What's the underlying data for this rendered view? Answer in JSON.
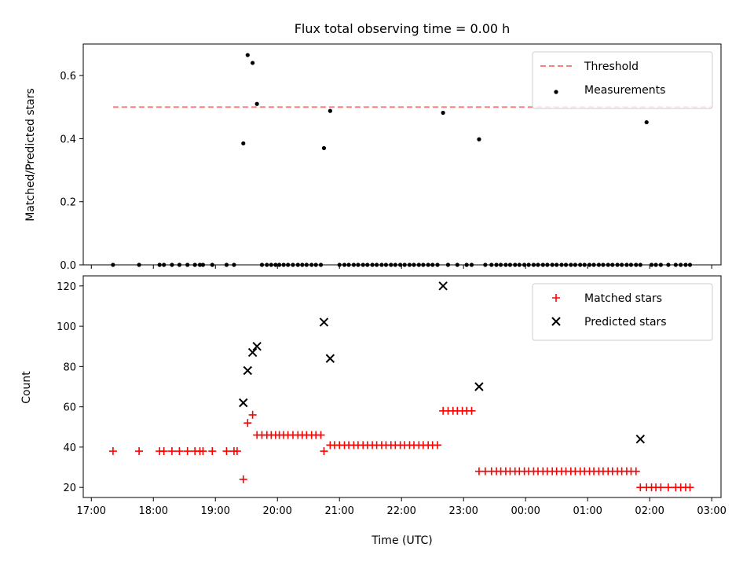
{
  "chart_data": {
    "title": "Flux total observing time = 0.00 h",
    "xlabel": "Time (UTC)",
    "x_tick_labels": [
      "17:00",
      "18:00",
      "19:00",
      "20:00",
      "21:00",
      "22:00",
      "23:00",
      "00:00",
      "01:00",
      "02:00",
      "03:00"
    ],
    "x_ticks_hours": [
      17,
      18,
      19,
      20,
      21,
      22,
      23,
      24,
      25,
      26,
      27
    ],
    "xlim": [
      16.87,
      27.15
    ],
    "panels": [
      {
        "type": "scatter",
        "ylabel": "Matched/Predicted stars",
        "ylim": [
          0,
          0.7
        ],
        "yticks": [
          0.0,
          0.2,
          0.4,
          0.6
        ],
        "ytick_labels": [
          "0.0",
          "0.2",
          "0.4",
          "0.6"
        ],
        "legend_position": "top-right",
        "threshold": {
          "name": "Threshold",
          "value": 0.5,
          "x_range": [
            17.35,
            27.0
          ],
          "color": "#ff7f7f"
        },
        "series": [
          {
            "name": "Measurements",
            "color": "#000000",
            "x": [
              17.35,
              17.77,
              18.1,
              18.17,
              18.3,
              18.42,
              18.55,
              18.67,
              18.75,
              18.8,
              18.95,
              19.18,
              19.3,
              19.45,
              19.52,
              19.6,
              19.67,
              19.75,
              19.83,
              19.9,
              19.97,
              20.03,
              20.1,
              20.17,
              20.25,
              20.33,
              20.4,
              20.47,
              20.55,
              20.62,
              20.7,
              20.75,
              20.85,
              21.0,
              21.08,
              21.15,
              21.23,
              21.3,
              21.38,
              21.45,
              21.53,
              21.6,
              21.68,
              21.75,
              21.83,
              21.9,
              21.98,
              22.05,
              22.13,
              22.2,
              22.28,
              22.35,
              22.43,
              22.5,
              22.58,
              22.67,
              22.75,
              22.9,
              23.05,
              23.13,
              23.25,
              23.35,
              23.45,
              23.53,
              23.6,
              23.68,
              23.75,
              23.83,
              23.9,
              23.98,
              24.05,
              24.13,
              24.2,
              24.28,
              24.35,
              24.43,
              24.5,
              24.58,
              24.65,
              24.73,
              24.8,
              24.88,
              24.95,
              25.03,
              25.1,
              25.18,
              25.25,
              25.33,
              25.4,
              25.48,
              25.55,
              25.63,
              25.7,
              25.78,
              25.85,
              25.95,
              26.03,
              26.1,
              26.18,
              26.3,
              26.42,
              26.5,
              26.58,
              26.65
            ],
            "y": [
              0,
              0,
              0,
              0,
              0,
              0,
              0,
              0,
              0,
              0,
              0,
              0,
              0,
              0.385,
              0.665,
              0.64,
              0.51,
              0,
              0,
              0,
              0,
              0,
              0,
              0,
              0,
              0,
              0,
              0,
              0,
              0,
              0,
              0.37,
              0.488,
              0,
              0,
              0,
              0,
              0,
              0,
              0,
              0,
              0,
              0,
              0,
              0,
              0,
              0,
              0,
              0,
              0,
              0,
              0,
              0,
              0,
              0,
              0.482,
              0,
              0,
              0,
              0,
              0.398,
              0,
              0,
              0,
              0,
              0,
              0,
              0,
              0,
              0,
              0,
              0,
              0,
              0,
              0,
              0,
              0,
              0,
              0,
              0,
              0,
              0,
              0,
              0,
              0,
              0,
              0,
              0,
              0,
              0,
              0,
              0,
              0,
              0,
              0,
              0.452,
              0,
              0,
              0,
              0,
              0,
              0,
              0,
              0
            ]
          }
        ]
      },
      {
        "type": "scatter",
        "ylabel": "Count",
        "ylim": [
          15,
          125
        ],
        "yticks": [
          20,
          40,
          60,
          80,
          100,
          120
        ],
        "ytick_labels": [
          "20",
          "40",
          "60",
          "80",
          "100",
          "120"
        ],
        "legend_position": "top-right",
        "series": [
          {
            "name": "Matched stars",
            "marker": "+",
            "color": "#ff0000",
            "x": [
              17.35,
              17.77,
              18.1,
              18.17,
              18.3,
              18.42,
              18.55,
              18.67,
              18.75,
              18.8,
              18.95,
              19.18,
              19.3,
              19.35,
              19.45,
              19.52,
              19.6,
              19.67,
              19.75,
              19.83,
              19.9,
              19.97,
              20.03,
              20.1,
              20.17,
              20.25,
              20.33,
              20.4,
              20.47,
              20.55,
              20.62,
              20.7,
              20.75,
              20.85,
              20.92,
              21.0,
              21.08,
              21.15,
              21.23,
              21.3,
              21.38,
              21.45,
              21.53,
              21.6,
              21.68,
              21.75,
              21.83,
              21.9,
              21.98,
              22.05,
              22.13,
              22.2,
              22.28,
              22.35,
              22.43,
              22.5,
              22.58,
              22.67,
              22.75,
              22.83,
              22.9,
              22.98,
              23.05,
              23.13,
              23.25,
              23.35,
              23.45,
              23.53,
              23.6,
              23.68,
              23.75,
              23.83,
              23.9,
              23.98,
              24.05,
              24.13,
              24.2,
              24.28,
              24.35,
              24.43,
              24.5,
              24.58,
              24.65,
              24.73,
              24.8,
              24.88,
              24.95,
              25.03,
              25.1,
              25.18,
              25.25,
              25.33,
              25.4,
              25.48,
              25.55,
              25.63,
              25.7,
              25.78,
              25.85,
              25.95,
              26.03,
              26.1,
              26.18,
              26.3,
              26.42,
              26.5,
              26.58,
              26.65
            ],
            "y": [
              38,
              38,
              38,
              38,
              38,
              38,
              38,
              38,
              38,
              38,
              38,
              38,
              38,
              38,
              24,
              52,
              56,
              46,
              46,
              46,
              46,
              46,
              46,
              46,
              46,
              46,
              46,
              46,
              46,
              46,
              46,
              46,
              38,
              41,
              41,
              41,
              41,
              41,
              41,
              41,
              41,
              41,
              41,
              41,
              41,
              41,
              41,
              41,
              41,
              41,
              41,
              41,
              41,
              41,
              41,
              41,
              41,
              58,
              58,
              58,
              58,
              58,
              58,
              58,
              28,
              28,
              28,
              28,
              28,
              28,
              28,
              28,
              28,
              28,
              28,
              28,
              28,
              28,
              28,
              28,
              28,
              28,
              28,
              28,
              28,
              28,
              28,
              28,
              28,
              28,
              28,
              28,
              28,
              28,
              28,
              28,
              28,
              28,
              20,
              20,
              20,
              20,
              20,
              20,
              20,
              20,
              20,
              20
            ]
          },
          {
            "name": "Predicted stars",
            "marker": "x",
            "color": "#000000",
            "x": [
              19.45,
              19.52,
              19.6,
              19.67,
              20.75,
              20.85,
              22.67,
              23.25,
              25.85
            ],
            "y": [
              62,
              78,
              87,
              90,
              102,
              84,
              120,
              70,
              44
            ]
          }
        ]
      }
    ]
  }
}
